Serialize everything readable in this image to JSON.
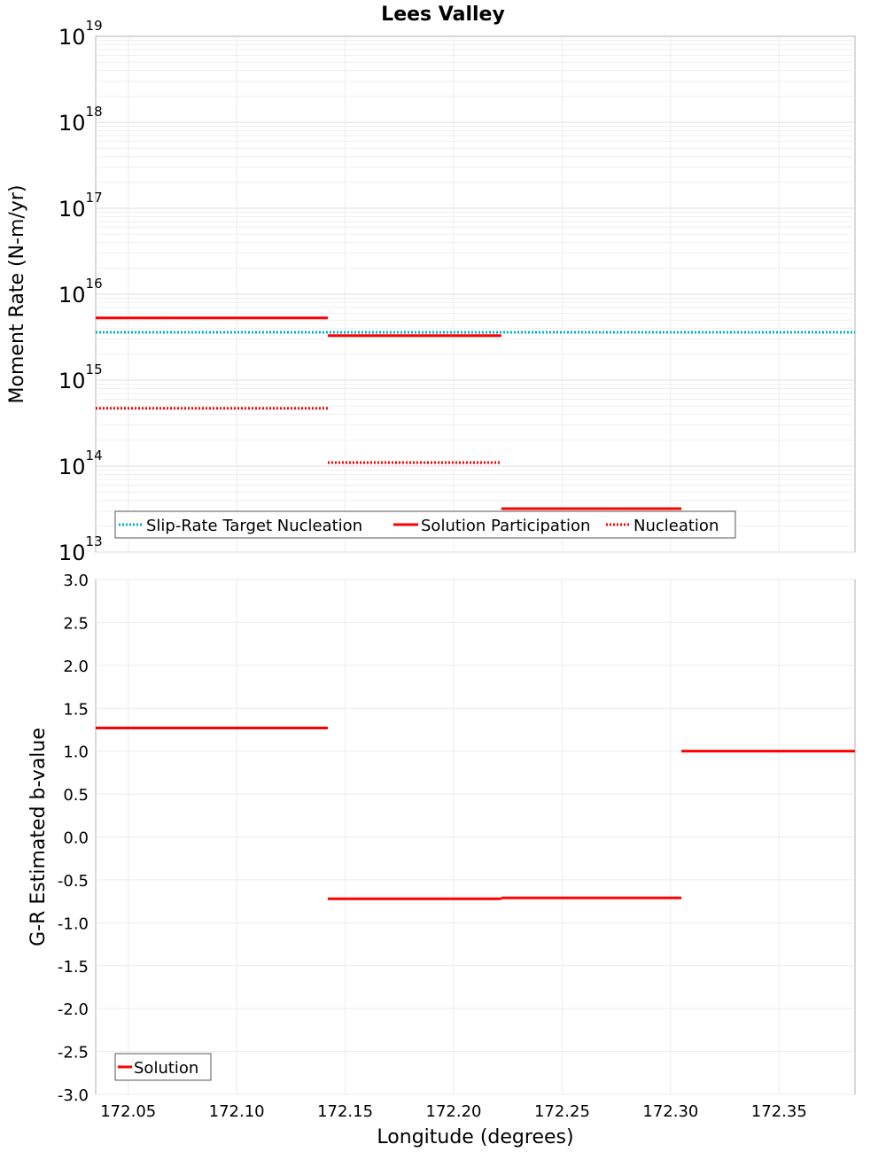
{
  "title": "Lees Valley",
  "colors": {
    "solution": "#ff0000",
    "target": "#00b3c8",
    "grid": "#e4e4e4",
    "frame": "#b0b0b0"
  },
  "chart_data": [
    {
      "type": "line",
      "scale": "log",
      "ylabel": "Moment Rate (N-m/yr)",
      "ylim": [
        10000000000000.0,
        1e+19
      ],
      "xlim": [
        172.035,
        172.385
      ],
      "y_ticks": [
        {
          "base": "10",
          "exp": "13",
          "value": 10000000000000.0
        },
        {
          "base": "10",
          "exp": "14",
          "value": 100000000000000.0
        },
        {
          "base": "10",
          "exp": "15",
          "value": 1000000000000000.0
        },
        {
          "base": "10",
          "exp": "16",
          "value": 1e+16
        },
        {
          "base": "10",
          "exp": "17",
          "value": 1e+17
        },
        {
          "base": "10",
          "exp": "18",
          "value": 1e+18
        },
        {
          "base": "10",
          "exp": "19",
          "value": 1e+19
        }
      ],
      "series": [
        {
          "name": "Slip-Rate Target Nucleation",
          "style": "dotted",
          "color": "#00b3c8",
          "segments": [
            {
              "x0": 172.035,
              "x1": 172.385,
              "y": 3600000000000000.0
            }
          ]
        },
        {
          "name": "Solution Participation",
          "style": "solid",
          "color": "#ff0000",
          "segments": [
            {
              "x0": 172.035,
              "x1": 172.142,
              "y": 5300000000000000.0
            },
            {
              "x0": 172.142,
              "x1": 172.222,
              "y": 3300000000000000.0
            },
            {
              "x0": 172.222,
              "x1": 172.305,
              "y": 32000000000000.0
            }
          ]
        },
        {
          "name": "Nucleation",
          "style": "dotted",
          "color": "#ff0000",
          "segments": [
            {
              "x0": 172.035,
              "x1": 172.142,
              "y": 470000000000000.0
            },
            {
              "x0": 172.142,
              "x1": 172.222,
              "y": 110000000000000.0
            }
          ]
        }
      ],
      "legend": [
        "Slip-Rate Target Nucleation",
        "Solution Participation",
        "Nucleation"
      ],
      "legend_position": "bottom-left"
    },
    {
      "type": "line",
      "scale": "linear",
      "ylabel": "G-R Estimated b-value",
      "xlabel": "Longitude (degrees)",
      "ylim": [
        -3.0,
        3.0
      ],
      "xlim": [
        172.035,
        172.385
      ],
      "y_ticks": [
        "-3.0",
        "-2.5",
        "-2.0",
        "-1.5",
        "-1.0",
        "-0.5",
        "0.0",
        "0.5",
        "1.0",
        "1.5",
        "2.0",
        "2.5",
        "3.0"
      ],
      "x_ticks": [
        "172.05",
        "172.10",
        "172.15",
        "172.20",
        "172.25",
        "172.30",
        "172.35"
      ],
      "series": [
        {
          "name": "Solution",
          "style": "solid",
          "color": "#ff0000",
          "segments": [
            {
              "x0": 172.035,
              "x1": 172.142,
              "y": 1.27
            },
            {
              "x0": 172.142,
              "x1": 172.222,
              "y": -0.72
            },
            {
              "x0": 172.222,
              "x1": 172.305,
              "y": -0.71
            },
            {
              "x0": 172.305,
              "x1": 172.385,
              "y": 1.0
            }
          ]
        }
      ],
      "legend": [
        "Solution"
      ],
      "legend_position": "bottom-left"
    }
  ]
}
